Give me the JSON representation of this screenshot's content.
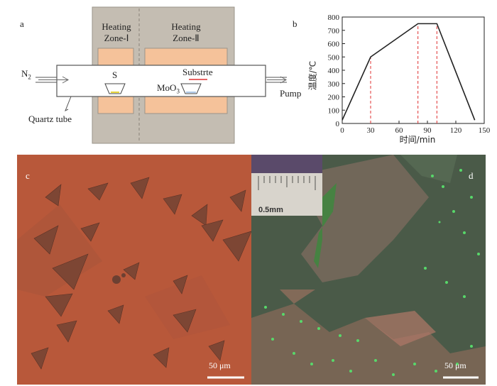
{
  "panel_a": {
    "label": "a",
    "zone1": {
      "line1": "Heating",
      "line2": "Zone-Ⅰ"
    },
    "zone2": {
      "line1": "Heating",
      "line2": "Zone-Ⅱ"
    },
    "n2": "N",
    "n2_sub": "2",
    "s": "S",
    "substrate": "Substrte",
    "moo3": "MoO",
    "moo3_sub": "3",
    "pump": "Pump",
    "quartz": "Quartz tube"
  },
  "panel_b": {
    "label": "b"
  },
  "panel_c": {
    "label": "c",
    "scale_label": "50 μm"
  },
  "panel_d": {
    "label": "d",
    "scale_label": "50 μm",
    "ruler_label": "0.5mm"
  },
  "chart_data": {
    "type": "line",
    "xlabel": "时间/min",
    "ylabel": "温度/℃",
    "xlim": [
      0,
      150
    ],
    "ylim": [
      0,
      800
    ],
    "xticks": [
      0,
      30,
      60,
      90,
      120,
      150
    ],
    "yticks": [
      0,
      100,
      200,
      300,
      400,
      500,
      600,
      700,
      800
    ],
    "x": [
      0,
      30,
      80,
      100,
      140
    ],
    "y": [
      25,
      500,
      750,
      750,
      25
    ],
    "dashed_x": [
      30,
      80,
      100
    ],
    "line_color": "#222222",
    "dash_color": "#e03030"
  },
  "colors": {
    "furnace": "#c4bdb2",
    "heater": "#f5c29a",
    "micrograph_c": "#b8583a",
    "micrograph_d": "#4a5a48"
  }
}
